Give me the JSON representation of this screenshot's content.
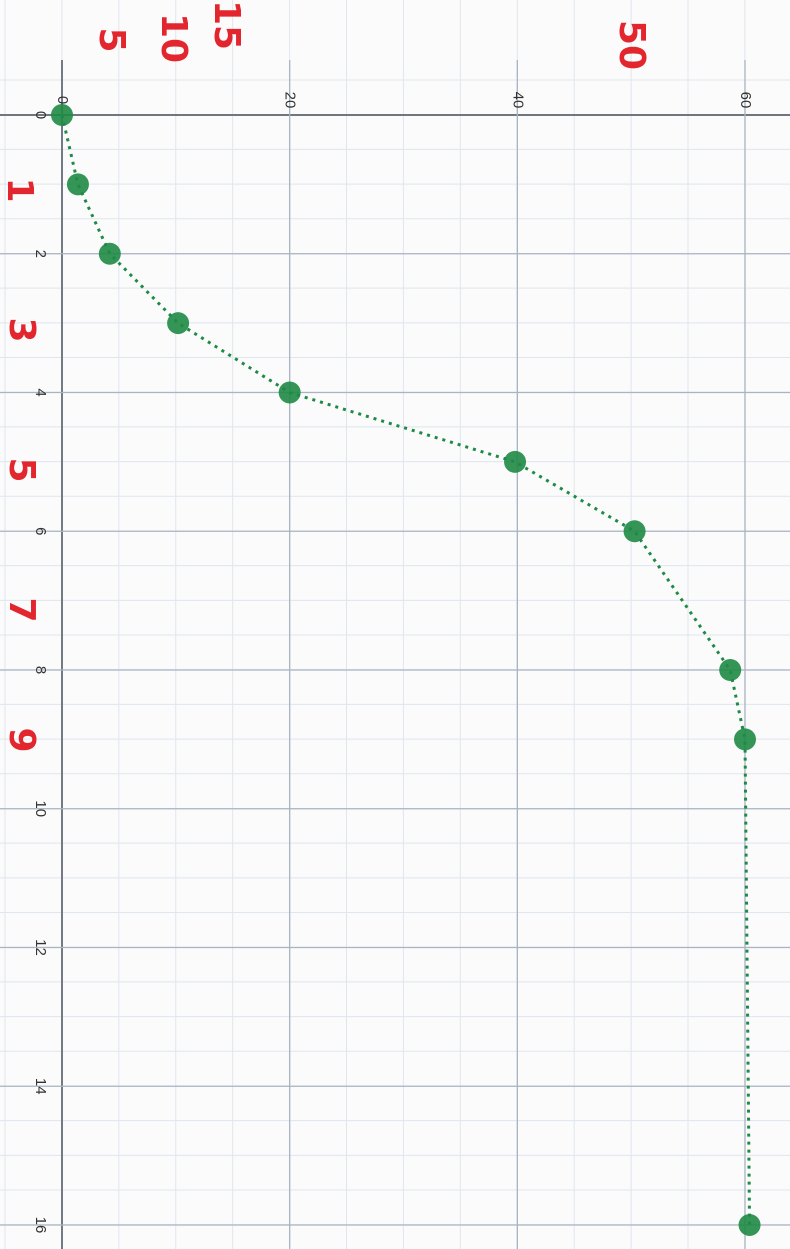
{
  "chart_data": {
    "type": "line",
    "x": [
      0,
      1,
      2,
      3,
      4,
      5,
      6,
      8,
      9,
      16
    ],
    "series": [
      {
        "color": "#1e8a45",
        "values": [
          0,
          1.4,
          4.2,
          10.2,
          20,
          39.8,
          50.3,
          58.7,
          60,
          60.4
        ]
      }
    ],
    "xlim": [
      0,
      16
    ],
    "xticks": [
      0,
      2,
      4,
      6,
      8,
      10,
      12,
      14,
      16
    ],
    "ylim": [
      0,
      60
    ],
    "yticks": [
      0,
      20,
      40,
      60
    ],
    "grid": true,
    "annotations": [
      "5",
      "10",
      "15",
      "50",
      "1",
      "3",
      "5",
      "7",
      "9"
    ],
    "annotation_color": "#e3262e"
  }
}
